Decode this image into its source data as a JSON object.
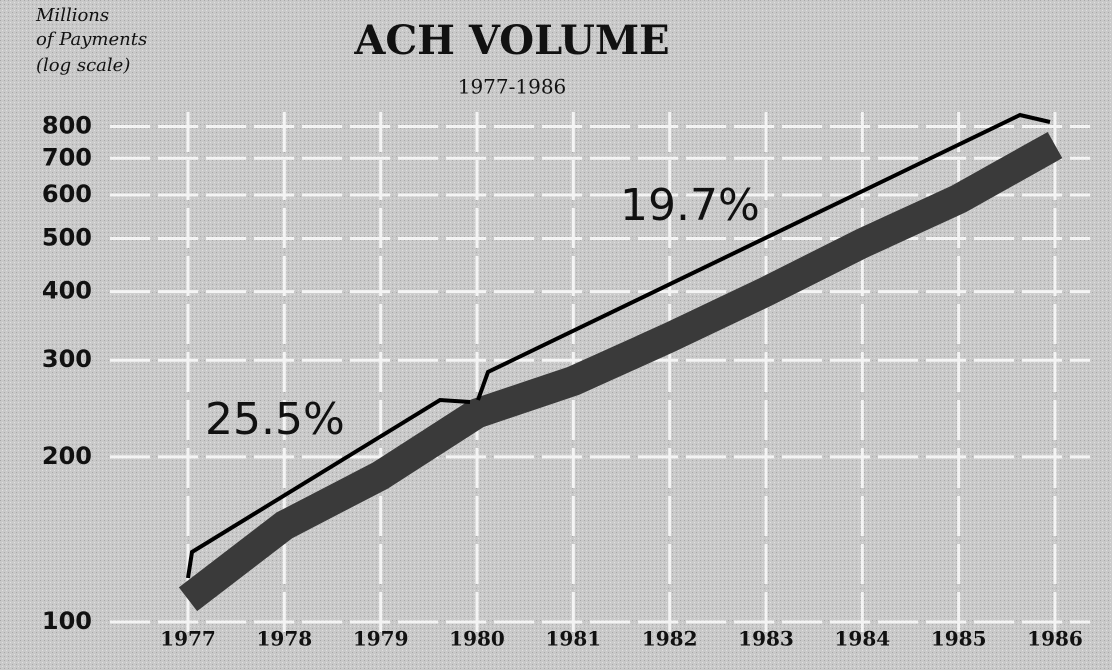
{
  "chart_data": {
    "type": "line",
    "title": "ACH VOLUME",
    "subtitle": "1977-1986",
    "y_label": [
      "Millions",
      "of Payments",
      "(log scale)"
    ],
    "categories": [
      "1977",
      "1978",
      "1979",
      "1980",
      "1981",
      "1982",
      "1983",
      "1984",
      "1985",
      "1986"
    ],
    "series": [
      {
        "name": "ACH volume",
        "color": "#3a3a3a",
        "values": [
          110,
          150,
          185,
          240,
          275,
          330,
          400,
          490,
          590,
          740
        ]
      }
    ],
    "ylim": [
      100,
      850
    ],
    "yticks": [
      100,
      200,
      300,
      400,
      500,
      600,
      700,
      800
    ],
    "log_scale": true,
    "grid": true,
    "annotations": [
      "25.5%",
      "19.7%"
    ]
  }
}
